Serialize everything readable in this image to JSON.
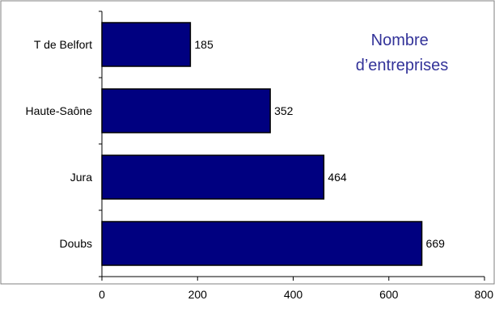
{
  "chart_data": {
    "type": "bar",
    "orientation": "horizontal",
    "title_lines": [
      "Nombre",
      "d’entreprises"
    ],
    "categories": [
      "T de Belfort",
      "Haute-Saône",
      "Jura",
      "Doubs"
    ],
    "values": [
      185,
      352,
      464,
      669
    ],
    "data_labels": [
      "185",
      "352",
      "464",
      "669"
    ],
    "xlim": [
      0,
      800
    ],
    "x_ticks": [
      0,
      200,
      400,
      600,
      800
    ],
    "x_tick_labels": [
      "0",
      "200",
      "400",
      "600",
      "800"
    ],
    "grid": false,
    "legend": "none",
    "colors": {
      "bar": "#000080",
      "bar_edge": "#000000",
      "title": "#333399",
      "axis": "#000000",
      "frame": "#808080"
    }
  }
}
